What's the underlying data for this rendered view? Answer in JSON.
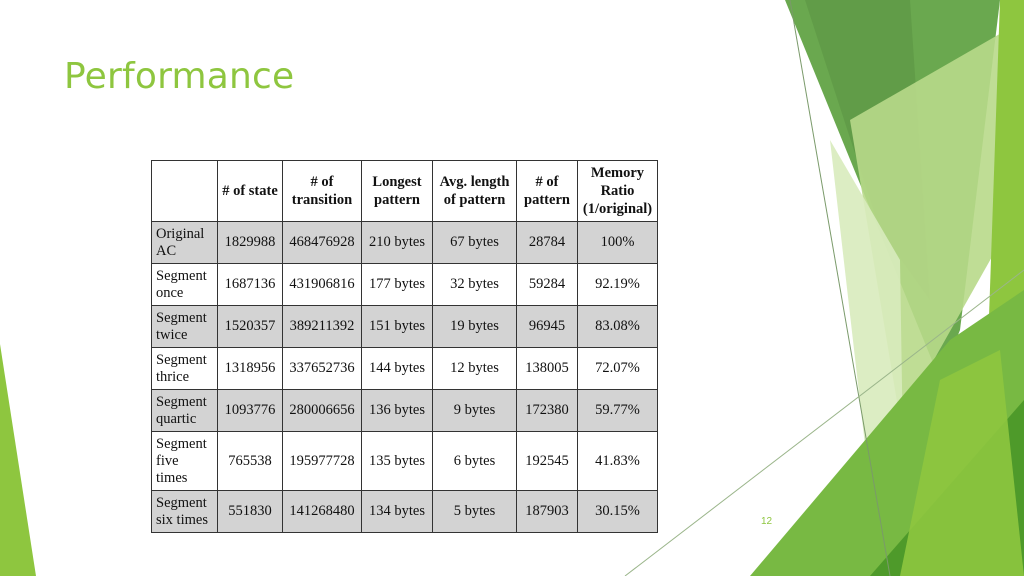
{
  "slide": {
    "title": "Performance",
    "number": "12"
  },
  "colors": {
    "accent": "#8ec63f",
    "dark_green": "#4e9a2a",
    "mid_green": "#6aa84f",
    "light_green": "#c9e3a6",
    "row_shade": "#d3d3d3"
  },
  "table": {
    "headers": [
      "",
      "# of state",
      "# of transition",
      "Longest pattern",
      "Avg. length of pattern",
      "# of pattern",
      "Memory Ratio (1/original)"
    ],
    "rows": [
      [
        "Original AC",
        "1829988",
        "468476928",
        "210 bytes",
        "67 bytes",
        "28784",
        "100%"
      ],
      [
        "Segment once",
        "1687136",
        "431906816",
        "177 bytes",
        "32 bytes",
        "59284",
        "92.19%"
      ],
      [
        "Segment twice",
        "1520357",
        "389211392",
        "151 bytes",
        "19 bytes",
        "96945",
        "83.08%"
      ],
      [
        "Segment thrice",
        "1318956",
        "337652736",
        "144 bytes",
        "12 bytes",
        "138005",
        "72.07%"
      ],
      [
        "Segment quartic",
        "1093776",
        "280006656",
        "136 bytes",
        "9 bytes",
        "172380",
        "59.77%"
      ],
      [
        "Segment five times",
        "765538",
        "195977728",
        "135 bytes",
        "6 bytes",
        "192545",
        "41.83%"
      ],
      [
        "Segment six times",
        "551830",
        "141268480",
        "134 bytes",
        "5 bytes",
        "187903",
        "30.15%"
      ]
    ]
  }
}
